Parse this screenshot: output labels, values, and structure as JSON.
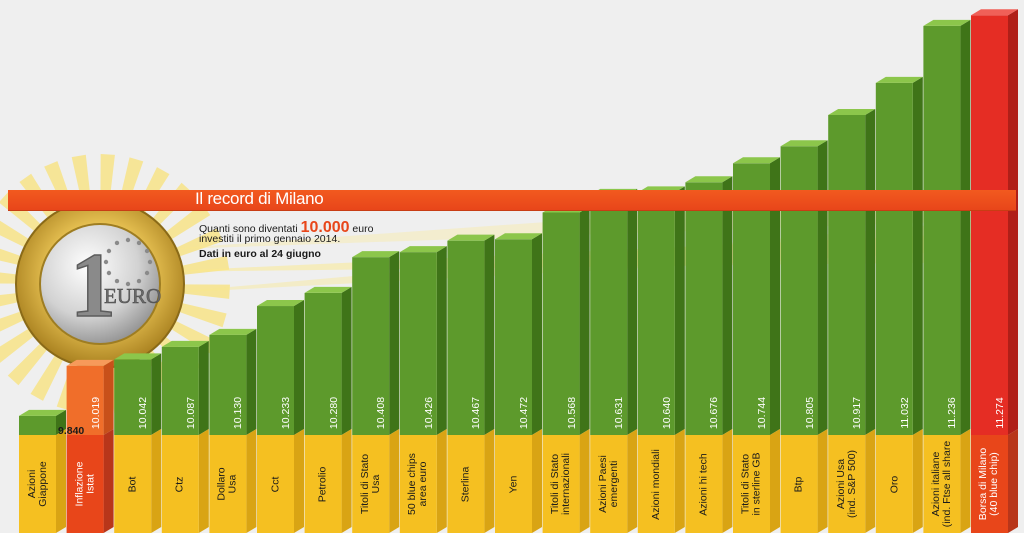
{
  "title": "Il record di Milano",
  "subtitle": {
    "line1_before": "Quanti sono diventati ",
    "line1_highlight": "10.000",
    "line1_after": " euro",
    "line2": "investiti il primo gennaio 2014.",
    "note": "Dati in euro al 24 giugno"
  },
  "coin_text": "EURO",
  "colors": {
    "background": "#efefef",
    "bar_green_front": "#5d9a2c",
    "bar_green_side": "#3f7418",
    "bar_green_top": "#8cc64b",
    "bar_orange_front": "#f06e2a",
    "bar_red_front": "#e52d24",
    "label_yellow": "#f5c021",
    "label_red": "#e8461a",
    "header_band": "#f25a1f"
  },
  "chart_data": {
    "type": "bar",
    "categories": [
      "Azioni Giappone",
      "Inflazione Istat",
      "Bot",
      "Ctz",
      "Dollaro Usa",
      "Cct",
      "Petrolio",
      "Titoli di Stato Usa",
      "50 blue chips area euro",
      "Sterlina",
      "Yen",
      "Titoli di Stato internazionali",
      "Azioni Paesi emergenti",
      "Azioni mondiali",
      "Azioni hi tech",
      "Titoli di Stato in sterline GB",
      "Btp",
      "Azioni Usa (ind. S&P 500)",
      "Oro",
      "Azioni italiane (ind. Ftse all share",
      "Borsa di Milano (40 blue chip)"
    ],
    "label_lines": [
      [
        "Azioni",
        "Giappone"
      ],
      [
        "Inflazione",
        "Istat"
      ],
      [
        "Bot"
      ],
      [
        "Ctz"
      ],
      [
        "Dollaro",
        "Usa"
      ],
      [
        "Cct"
      ],
      [
        "Petrolio"
      ],
      [
        "Titoli di Stato",
        "Usa"
      ],
      [
        "50 blue chips",
        "area euro"
      ],
      [
        "Sterlina"
      ],
      [
        "Yen"
      ],
      [
        "Titoli di Stato",
        "internazionali"
      ],
      [
        "Azioni Paesi",
        "emergenti"
      ],
      [
        "Azioni mondiali"
      ],
      [
        "Azioni hi tech"
      ],
      [
        "Titoli di Stato",
        "in sterline GB"
      ],
      [
        "Btp"
      ],
      [
        "Azioni Usa",
        "(ind. S&P 500)"
      ],
      [
        "Oro"
      ],
      [
        "Azioni italiane",
        "(ind. Ftse all share"
      ],
      [
        "Borsa di Milano",
        "(40 blue chip)"
      ]
    ],
    "values": [
      9840,
      10019,
      10042,
      10087,
      10130,
      10233,
      10280,
      10408,
      10426,
      10467,
      10472,
      10568,
      10631,
      10640,
      10676,
      10744,
      10805,
      10917,
      11032,
      11236,
      11274
    ],
    "value_labels": [
      "9.840",
      "10.019",
      "10.042",
      "10.087",
      "10.130",
      "10.233",
      "10.280",
      "10.408",
      "10.426",
      "10.467",
      "10.472",
      "10.568",
      "10.631",
      "10.640",
      "10.676",
      "10.744",
      "10.805",
      "10.917",
      "11.032",
      "11.236",
      "11.274"
    ],
    "bar_colors": [
      "green",
      "orange",
      "green",
      "green",
      "green",
      "green",
      "green",
      "green",
      "green",
      "green",
      "green",
      "green",
      "green",
      "green",
      "green",
      "green",
      "green",
      "green",
      "green",
      "green",
      "red"
    ],
    "ylim": [
      9800,
      11300
    ],
    "grid": false,
    "legend": "none"
  }
}
